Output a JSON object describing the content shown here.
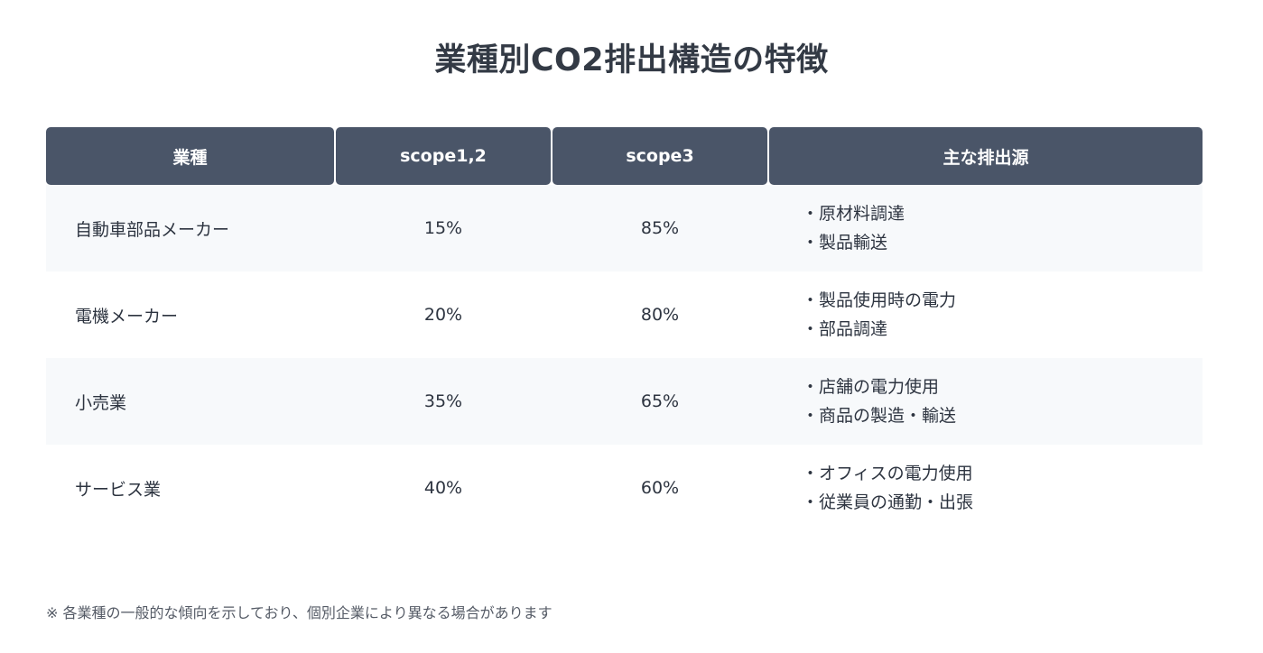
{
  "title": "業種別CO2排出構造の特徴",
  "table": {
    "headers": [
      "業種",
      "scope1,2",
      "scope3",
      "主な排出源"
    ],
    "rows": [
      {
        "industry": "自動車部品メーカー",
        "scope12": "15%",
        "scope3": "85%",
        "sources": [
          "原材料調達",
          "製品輸送"
        ]
      },
      {
        "industry": "電機メーカー",
        "scope12": "20%",
        "scope3": "80%",
        "sources": [
          "製品使用時の電力",
          "部品調達"
        ]
      },
      {
        "industry": "小売業",
        "scope12": "35%",
        "scope3": "65%",
        "sources": [
          "店舗の電力使用",
          "商品の製造・輸送"
        ]
      },
      {
        "industry": "サービス業",
        "scope12": "40%",
        "scope3": "60%",
        "sources": [
          "オフィスの電力使用",
          "従業員の通勤・出張"
        ]
      }
    ]
  },
  "footnote": "※ 各業種の一般的な傾向を示しており、個別企業により異なる場合があります",
  "colors": {
    "header_bg": "#4a5568",
    "row_alt_bg": "#f7f9fb"
  }
}
